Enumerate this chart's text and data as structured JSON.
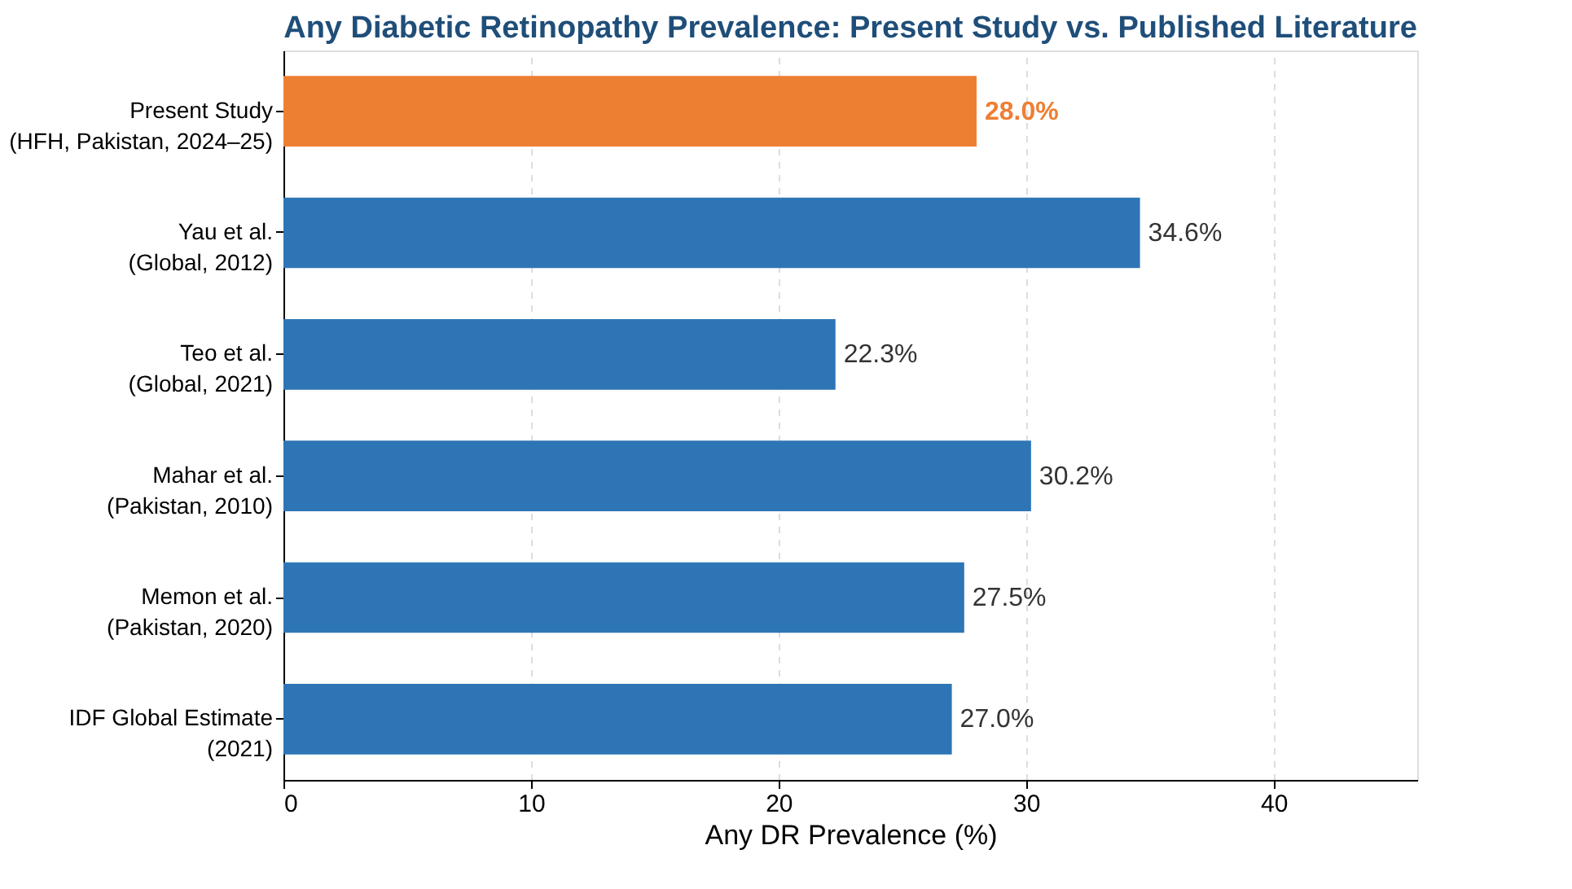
{
  "chart_data": {
    "type": "bar",
    "orientation": "horizontal",
    "title": "Any Diabetic Retinopathy Prevalence: Present Study vs. Published Literature",
    "xlabel": "Any DR Prevalence (%)",
    "categories": [
      "Present Study\n(HFH, Pakistan, 2024–25)",
      "Yau et al.\n(Global, 2012)",
      "Teo et al.\n(Global, 2021)",
      "Mahar et al.\n(Pakistan, 2010)",
      "Memon et al.\n(Pakistan, 2020)",
      "IDF Global Estimate\n(2021)"
    ],
    "values": [
      28.0,
      34.6,
      22.3,
      30.2,
      27.5,
      27.0
    ],
    "colors": [
      "#ed7f33",
      "#2e75b6",
      "#2e75b6",
      "#2e75b6",
      "#2e75b6",
      "#2e75b6"
    ],
    "value_labels": [
      "28.0%",
      "34.6%",
      "22.3%",
      "30.2%",
      "27.5%",
      "27.0%"
    ],
    "xlim": [
      0,
      45.8
    ],
    "xticks": [
      0,
      10,
      20,
      30,
      40
    ],
    "grid": "x"
  }
}
